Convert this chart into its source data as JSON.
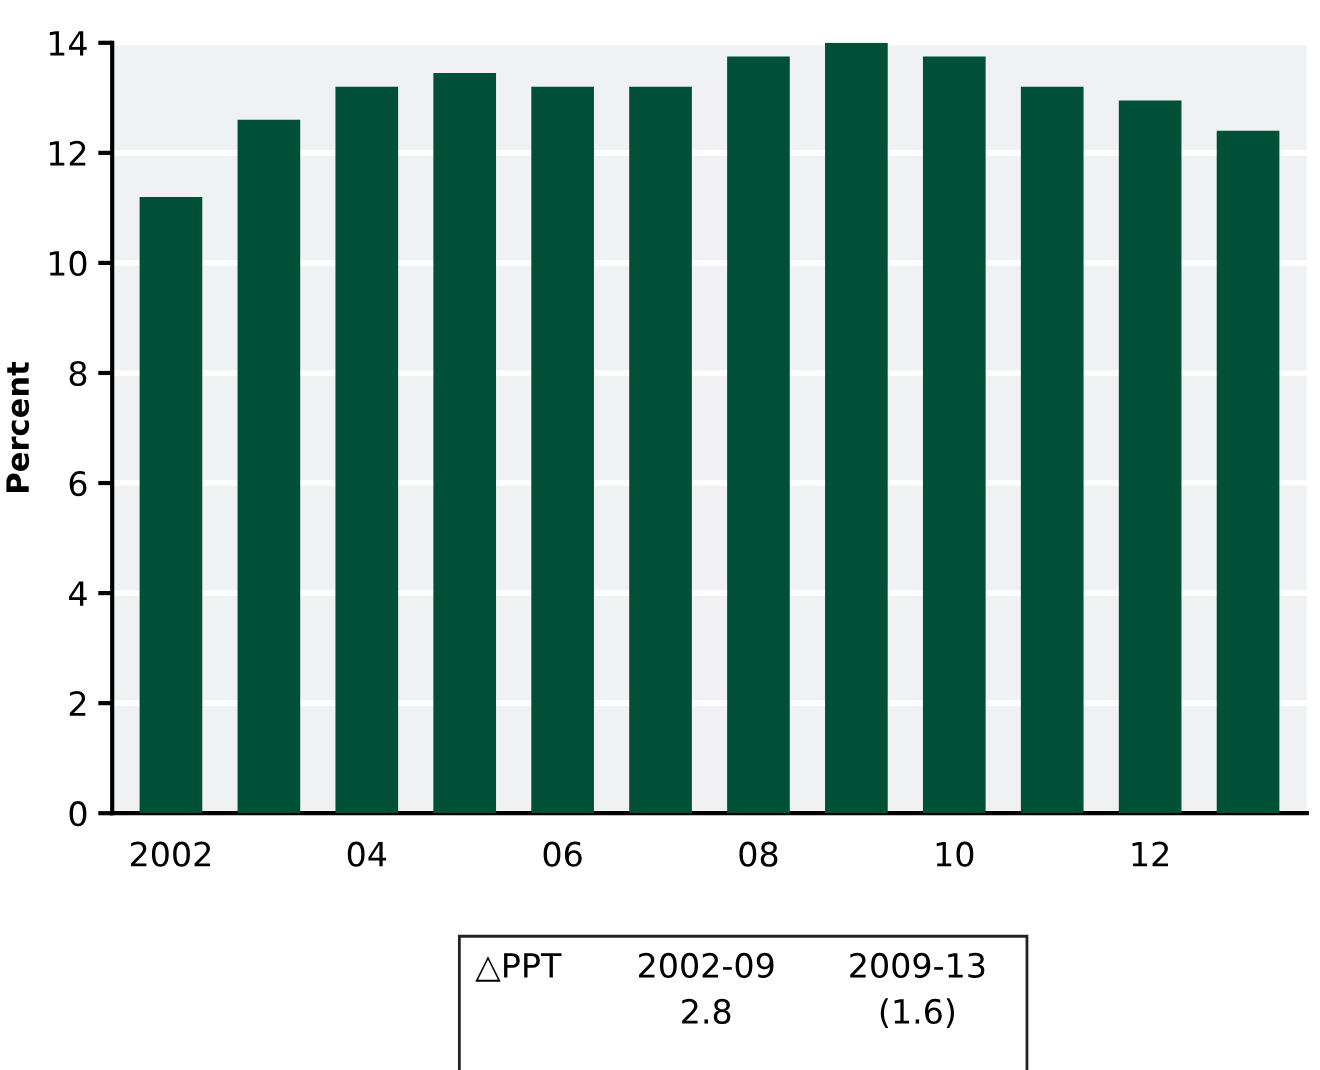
{
  "chart_data": {
    "type": "bar",
    "ylabel": "Percent",
    "categories": [
      "2002",
      null,
      "04",
      null,
      "06",
      null,
      "08",
      null,
      "10",
      null,
      "12",
      null
    ],
    "values": [
      11.2,
      12.6,
      13.2,
      13.45,
      13.2,
      13.2,
      13.75,
      14.0,
      13.75,
      13.2,
      12.95,
      12.4
    ],
    "color": "#005038",
    "ylim": [
      0,
      14
    ],
    "yticks": [
      0,
      2,
      4,
      6,
      8,
      10,
      12,
      14
    ],
    "grid": "y",
    "annotations": [
      "△PPT",
      "2002-09",
      "2.8",
      "2009-13",
      "(1.6)"
    ]
  }
}
